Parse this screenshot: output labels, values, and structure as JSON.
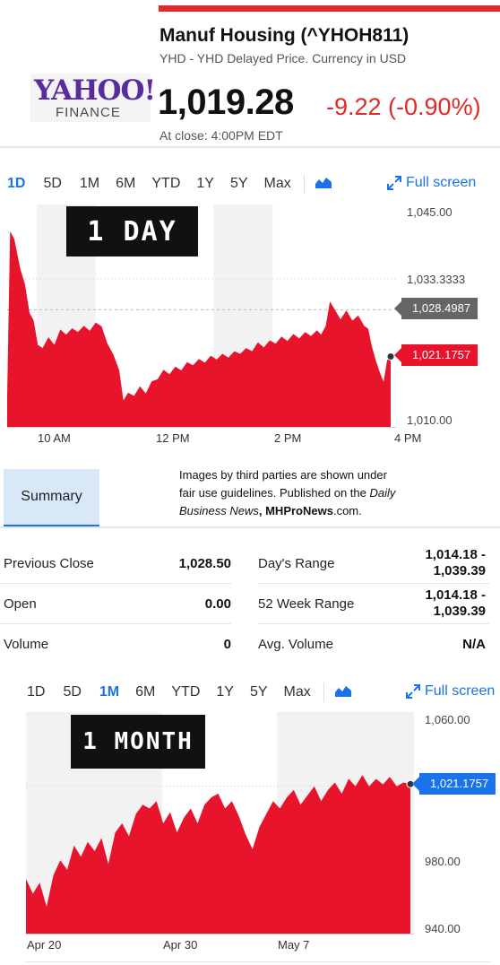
{
  "header": {
    "title": "Manuf Housing (^YHOH811)",
    "subtitle": "YHD - YHD Delayed Price. Currency in USD",
    "price": "1,019.28",
    "change": "-9.22 (-0.90%)",
    "close_time": "At close: 4:00PM EDT"
  },
  "logo": {
    "line1": "YAHOO!",
    "line2": "FINANCE"
  },
  "colors": {
    "accent": "#1a73e8",
    "down": "#e02a2a",
    "chart_fill": "#e8142c"
  },
  "chart1": {
    "tabs": [
      "1D",
      "5D",
      "1M",
      "6M",
      "YTD",
      "1Y",
      "5Y",
      "Max"
    ],
    "active_tab": "1D",
    "fullscreen": "Full screen",
    "overlay": "1 DAY",
    "prev_close_label": "1,028.4987",
    "last_label": "1,021.1757"
  },
  "chart2": {
    "tabs": [
      "1D",
      "5D",
      "1M",
      "6M",
      "YTD",
      "1Y",
      "5Y",
      "Max"
    ],
    "active_tab": "1M",
    "fullscreen": "Full screen",
    "overlay": "1 MONTH",
    "last_label": "1,021.1757"
  },
  "summary": {
    "tab": "Summary"
  },
  "notice": {
    "line1": "Images by third parties are shown under",
    "line2": "fair use guidelines.  Published on the ",
    "line2_italic": "Daily",
    "line3_italic": "Business News",
    "line3_bold": ", MHProNews",
    "line3_rest": ".com."
  },
  "stats": {
    "left": [
      {
        "label": "Previous Close",
        "value": "1,028.50"
      },
      {
        "label": "Open",
        "value": "0.00"
      },
      {
        "label": "Volume",
        "value": "0"
      }
    ],
    "right": [
      {
        "label": "Day's Range",
        "value1": "1,014.18 -",
        "value2": "1,039.39"
      },
      {
        "label": "52 Week Range",
        "value1": "1,014.18 -",
        "value2": "1,039.39"
      },
      {
        "label": "Avg. Volume",
        "value1": "N/A"
      }
    ]
  },
  "chart_data": [
    {
      "type": "area",
      "title": "",
      "x_ticks": [
        "10 AM",
        "12 PM",
        "2 PM",
        "4 PM"
      ],
      "y_ticks": [
        "1,045.00",
        "1,033.3333",
        "1,010.00"
      ],
      "ylim": [
        1010,
        1045
      ],
      "x_range": [
        9.5,
        16
      ],
      "reference_line": 1028.4987,
      "last_value": 1021.1757,
      "points": [
        [
          9.5,
          1015.0
        ],
        [
          9.55,
          1040.8
        ],
        [
          9.62,
          1039.6
        ],
        [
          9.72,
          1035.0
        ],
        [
          9.8,
          1032.5
        ],
        [
          9.88,
          1028.0
        ],
        [
          9.95,
          1026.8
        ],
        [
          10.02,
          1023.0
        ],
        [
          10.1,
          1022.5
        ],
        [
          10.2,
          1024.2
        ],
        [
          10.3,
          1023.0
        ],
        [
          10.4,
          1025.4
        ],
        [
          10.5,
          1024.6
        ],
        [
          10.6,
          1025.6
        ],
        [
          10.7,
          1025.0
        ],
        [
          10.8,
          1026.0
        ],
        [
          10.9,
          1025.2
        ],
        [
          11.0,
          1026.5
        ],
        [
          11.1,
          1025.9
        ],
        [
          11.2,
          1023.2
        ],
        [
          11.3,
          1021.5
        ],
        [
          11.4,
          1019.0
        ],
        [
          11.47,
          1014.3
        ],
        [
          11.55,
          1015.5
        ],
        [
          11.65,
          1015.0
        ],
        [
          11.75,
          1016.5
        ],
        [
          11.85,
          1015.4
        ],
        [
          11.95,
          1017.3
        ],
        [
          12.05,
          1017.6
        ],
        [
          12.15,
          1019.1
        ],
        [
          12.25,
          1018.4
        ],
        [
          12.35,
          1019.6
        ],
        [
          12.45,
          1019.0
        ],
        [
          12.55,
          1020.3
        ],
        [
          12.65,
          1019.8
        ],
        [
          12.75,
          1020.8
        ],
        [
          12.85,
          1020.2
        ],
        [
          12.95,
          1021.3
        ],
        [
          13.05,
          1020.7
        ],
        [
          13.15,
          1021.6
        ],
        [
          13.25,
          1021.0
        ],
        [
          13.35,
          1022.0
        ],
        [
          13.45,
          1021.6
        ],
        [
          13.55,
          1022.5
        ],
        [
          13.65,
          1022.0
        ],
        [
          13.75,
          1023.4
        ],
        [
          13.85,
          1022.6
        ],
        [
          13.95,
          1023.7
        ],
        [
          14.05,
          1023.2
        ],
        [
          14.15,
          1024.3
        ],
        [
          14.25,
          1023.6
        ],
        [
          14.35,
          1024.7
        ],
        [
          14.45,
          1024.0
        ],
        [
          14.55,
          1025.0
        ],
        [
          14.65,
          1024.4
        ],
        [
          14.75,
          1025.3
        ],
        [
          14.82,
          1024.6
        ],
        [
          14.9,
          1026.0
        ],
        [
          14.97,
          1029.8
        ],
        [
          15.05,
          1028.6
        ],
        [
          15.15,
          1027.0
        ],
        [
          15.25,
          1028.4
        ],
        [
          15.35,
          1026.8
        ],
        [
          15.45,
          1027.6
        ],
        [
          15.55,
          1026.0
        ],
        [
          15.62,
          1025.5
        ],
        [
          15.68,
          1022.8
        ],
        [
          15.75,
          1020.5
        ],
        [
          15.82,
          1018.6
        ],
        [
          15.88,
          1017.2
        ],
        [
          15.94,
          1020.6
        ],
        [
          16.0,
          1021.1757
        ]
      ]
    },
    {
      "type": "area",
      "title": "",
      "x_ticks": [
        "Apr 20",
        "Apr 30",
        "May 7"
      ],
      "y_ticks": [
        "1,060.00",
        "980.00",
        "940.00"
      ],
      "ylim": [
        940,
        1060
      ],
      "last_value": 1021.1757,
      "points": [
        [
          0,
          970
        ],
        [
          1,
          962
        ],
        [
          2,
          968
        ],
        [
          3,
          955
        ],
        [
          4,
          972
        ],
        [
          5,
          980
        ],
        [
          6,
          975
        ],
        [
          7,
          988
        ],
        [
          8,
          982
        ],
        [
          9,
          990
        ],
        [
          10,
          985
        ],
        [
          11,
          992
        ],
        [
          12,
          978
        ],
        [
          13,
          995
        ],
        [
          14,
          1000
        ],
        [
          15,
          993
        ],
        [
          16,
          1005
        ],
        [
          17,
          1010
        ],
        [
          18,
          1008
        ],
        [
          19,
          1012
        ],
        [
          20,
          1000
        ],
        [
          21,
          1006
        ],
        [
          22,
          995
        ],
        [
          23,
          1003
        ],
        [
          24,
          1008
        ],
        [
          25,
          1000
        ],
        [
          26,
          1010
        ],
        [
          27,
          1014
        ],
        [
          28,
          1016
        ],
        [
          29,
          1008
        ],
        [
          30,
          1012
        ],
        [
          31,
          1004
        ],
        [
          32,
          994
        ],
        [
          33,
          986
        ],
        [
          34,
          998
        ],
        [
          35,
          1005
        ],
        [
          36,
          1012
        ],
        [
          37,
          1008
        ],
        [
          38,
          1014
        ],
        [
          39,
          1018
        ],
        [
          40,
          1010
        ],
        [
          41,
          1015
        ],
        [
          42,
          1020
        ],
        [
          43,
          1012
        ],
        [
          44,
          1018
        ],
        [
          45,
          1022
        ],
        [
          46,
          1016
        ],
        [
          47,
          1024
        ],
        [
          48,
          1020
        ],
        [
          49,
          1026
        ],
        [
          50,
          1020
        ],
        [
          51,
          1024
        ],
        [
          52,
          1021
        ],
        [
          53,
          1025
        ],
        [
          54,
          1020
        ],
        [
          55,
          1022
        ],
        [
          56,
          1021.1757
        ]
      ]
    }
  ]
}
